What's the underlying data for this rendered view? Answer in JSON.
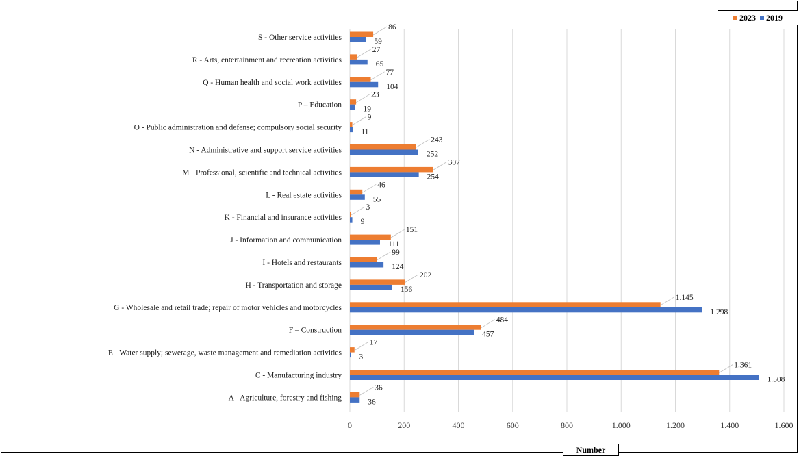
{
  "chart_data": {
    "type": "bar",
    "orientation": "horizontal",
    "title": "",
    "xlabel": "Number",
    "ylabel": "",
    "xlim": [
      0,
      1600
    ],
    "x_ticks": [
      {
        "value": 0,
        "label": "0"
      },
      {
        "value": 200,
        "label": "200"
      },
      {
        "value": 400,
        "label": "400"
      },
      {
        "value": 600,
        "label": "600"
      },
      {
        "value": 800,
        "label": "800"
      },
      {
        "value": 1000,
        "label": "1.000"
      },
      {
        "value": 1200,
        "label": "1.200"
      },
      {
        "value": 1400,
        "label": "1.400"
      },
      {
        "value": 1600,
        "label": "1.600"
      }
    ],
    "grid": "vertical",
    "legend_position": "top-right",
    "categories": [
      "S - Other service activities",
      "R - Arts, entertainment and recreation activities",
      "Q - Human health and social work activities",
      "P – Education",
      "O - Public administration and defense; compulsory social security",
      "N - Administrative and support service activities",
      "M - Professional, scientific and technical activities",
      "L - Real estate activities",
      "K - Financial and insurance activities",
      "J - Information and communication",
      "I - Hotels and restaurants",
      "H - Transportation and storage",
      "G - Wholesale and retail trade; repair of motor vehicles and motorcycles",
      "F – Construction",
      "E - Water supply; sewerage, waste management and remediation activities",
      "C - Manufacturing industry",
      "A - Agriculture, forestry and fishing"
    ],
    "series": [
      {
        "name": "2023",
        "color": "#ED7D31",
        "values": [
          86,
          27,
          77,
          23,
          9,
          243,
          307,
          46,
          3,
          151,
          99,
          202,
          1145,
          484,
          17,
          1361,
          36
        ],
        "labels": [
          "86",
          "27",
          "77",
          "23",
          "9",
          "243",
          "307",
          "46",
          "3",
          "151",
          "99",
          "202",
          "1.145",
          "484",
          "17",
          "1.361",
          "36"
        ]
      },
      {
        "name": "2019",
        "color": "#4472C4",
        "values": [
          59,
          65,
          104,
          19,
          11,
          252,
          254,
          55,
          9,
          111,
          124,
          156,
          1298,
          457,
          3,
          1508,
          36
        ],
        "labels": [
          "59",
          "65",
          "104",
          "19",
          "11",
          "252",
          "254",
          "55",
          "9",
          "111",
          "124",
          "156",
          "1.298",
          "457",
          "3",
          "1.508",
          "36"
        ]
      }
    ]
  }
}
